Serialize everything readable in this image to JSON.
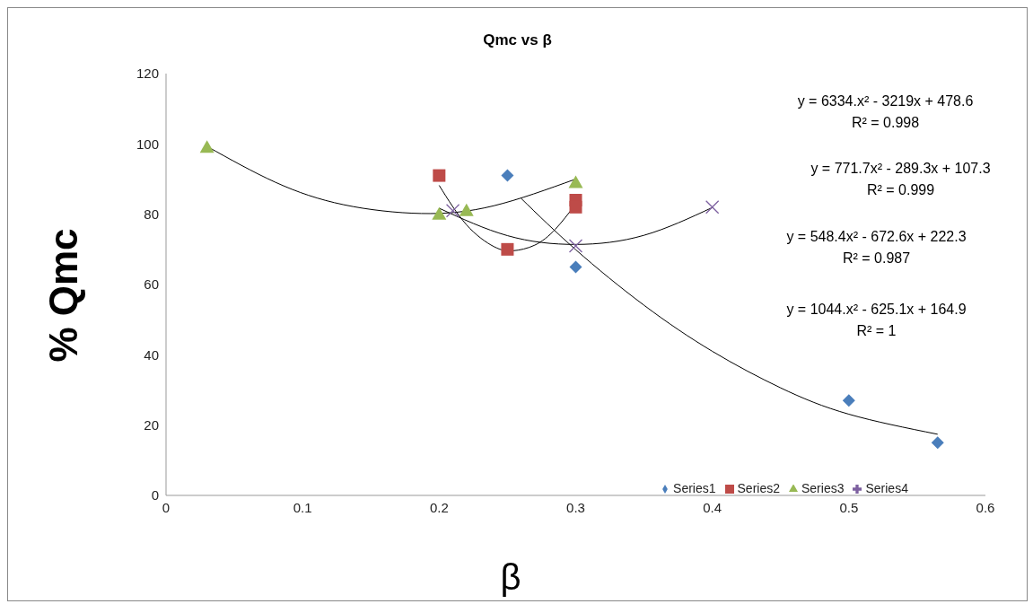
{
  "chart_data": {
    "type": "scatter",
    "title": "Qmc vs β",
    "xlabel": "β",
    "ylabel": "% Qmc",
    "xlim": [
      0,
      0.6
    ],
    "xticks": [
      0,
      0.1,
      0.2,
      0.3,
      0.4,
      0.5,
      0.6
    ],
    "ylim": [
      0,
      120
    ],
    "yticks": [
      0,
      20,
      40,
      60,
      80,
      100,
      120
    ],
    "legend": "bottom right",
    "series": [
      {
        "name": "Series1",
        "color": "#4a7ebb",
        "marker": "diamond",
        "x": [
          0.25,
          0.3,
          0.5,
          0.565
        ],
        "values": [
          91,
          65,
          27,
          15
        ]
      },
      {
        "name": "Series2",
        "color": "#be4b48",
        "marker": "square",
        "x": [
          0.2,
          0.25,
          0.3,
          0.3
        ],
        "values": [
          91,
          70,
          84,
          82
        ]
      },
      {
        "name": "Series3",
        "color": "#98b954",
        "marker": "triangle",
        "x": [
          0.03,
          0.2,
          0.22,
          0.3
        ],
        "values": [
          99,
          80,
          81,
          89
        ]
      },
      {
        "name": "Series4",
        "color": "#7d60a0",
        "marker": "cross",
        "x": [
          0.21,
          0.3,
          0.4
        ],
        "values": [
          81,
          71,
          82
        ]
      },
      {
        "type": "line",
        "color": "#000000",
        "x": [
          0.26,
          0.3,
          0.35,
          0.4,
          0.45,
          0.5,
          0.565
        ],
        "values": [
          84.5,
          69.9,
          54.1,
          41,
          30.6,
          23.1,
          17.4
        ]
      },
      {
        "type": "line",
        "color": "#000000",
        "x": [
          0.2,
          0.22,
          0.24,
          0.254,
          0.27,
          0.285,
          0.3
        ],
        "values": [
          88.2,
          77,
          70.8,
          69.6,
          71.2,
          75.7,
          82.9
        ]
      },
      {
        "type": "line",
        "color": "#000000",
        "x": [
          0.03,
          0.08,
          0.13,
          0.187,
          0.24,
          0.3
        ],
        "values": [
          99.3,
          89.1,
          82.7,
          80.2,
          82.4,
          90
        ]
      },
      {
        "type": "line",
        "color": "#000000",
        "x": [
          0.2,
          0.25,
          0.3,
          0.35,
          0.4
        ],
        "values": [
          81.7,
          73.9,
          71.4,
          74,
          81.9
        ]
      }
    ],
    "annotations": [
      "y = 6334.x² - 3219x + 478.6",
      "R² = 0.998",
      "y = 771.7x² - 289.3x + 107.3",
      "R² = 0.999",
      "y = 548.4x² - 672.6x + 222.3",
      "R² = 0.987",
      "y = 1044.x² - 625.1x + 164.9",
      "R² = 1"
    ]
  }
}
